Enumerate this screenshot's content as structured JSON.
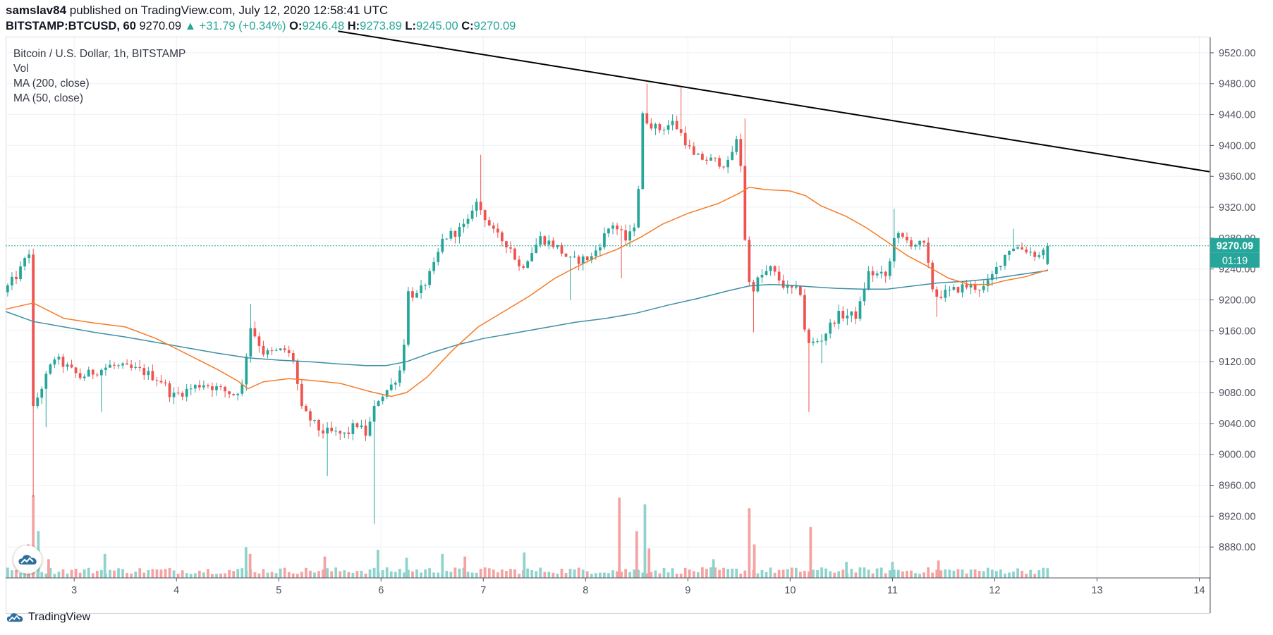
{
  "header": {
    "user": "samslav84",
    "published_text": "published on TradingView.com, July 12, 2020 12:58:41 UTC",
    "symbol": "BITSTAMP:BTCUSD, 60",
    "last": "9270.09",
    "change": "▲ +31.79 (+0.34%)",
    "o_label": "O:",
    "o_value": "9246.48",
    "h_label": "H:",
    "h_value": "9273.89",
    "l_label": "L:",
    "l_value": "9245.00",
    "c_label": "C:",
    "c_value": "9270.09"
  },
  "legend": {
    "title": "Bitcoin / U.S. Dollar, 1h, BITSTAMP",
    "vol": "Vol",
    "ma200": "MA (200, close)",
    "ma50": "MA (50, close)"
  },
  "footer": {
    "brand": "TradingView"
  },
  "colors": {
    "up": "#26a69a",
    "down": "#ef5350",
    "vol_up": "#8fd3cc",
    "vol_down": "#f4a3a2",
    "ma50": "#f57c28",
    "ma200": "#3d8fa6",
    "trendline": "#000000",
    "grid": "#eef0f4"
  },
  "icons": {
    "tradingview_logo": "tradingview-cloud-icon"
  },
  "chart_data": {
    "type": "candlestick",
    "title": "Bitcoin / U.S. Dollar, 1h, BITSTAMP",
    "y_axis": {
      "ylim": [
        8840,
        9540
      ],
      "tick_labels": [
        "9520.00",
        "9480.00",
        "9440.00",
        "9400.00",
        "9360.00",
        "9320.00",
        "9280.00",
        "9240.00",
        "9200.00",
        "9160.00",
        "9120.00",
        "9080.00",
        "9040.00",
        "9000.00",
        "8960.00",
        "8920.00",
        "8880.00"
      ]
    },
    "x_axis": {
      "day_range": [
        2.33,
        14.1
      ],
      "tick_labels": [
        "3",
        "4",
        "5",
        "6",
        "7",
        "8",
        "9",
        "10",
        "11",
        "12",
        "13",
        "14"
      ]
    },
    "price_label": "9270.09",
    "countdown_label": "01:19",
    "grid": true,
    "ohlc_path": [
      [
        2.35,
        9210
      ],
      [
        2.5,
        9235
      ],
      [
        2.6,
        9262
      ],
      [
        2.62,
        9050
      ],
      [
        2.7,
        9080
      ],
      [
        2.85,
        9125
      ],
      [
        3.1,
        9100
      ],
      [
        3.4,
        9115
      ],
      [
        3.7,
        9108
      ],
      [
        3.9,
        9095
      ],
      [
        4.0,
        9075
      ],
      [
        4.3,
        9092
      ],
      [
        4.6,
        9078
      ],
      [
        4.7,
        9090
      ],
      [
        4.75,
        9170
      ],
      [
        4.9,
        9130
      ],
      [
        5.1,
        9135
      ],
      [
        5.2,
        9120
      ],
      [
        5.25,
        9060
      ],
      [
        5.45,
        9030
      ],
      [
        5.7,
        9025
      ],
      [
        5.8,
        9040
      ],
      [
        5.9,
        9025
      ],
      [
        6.0,
        9070
      ],
      [
        6.15,
        9090
      ],
      [
        6.25,
        9115
      ],
      [
        6.3,
        9210
      ],
      [
        6.4,
        9205
      ],
      [
        6.55,
        9240
      ],
      [
        6.65,
        9280
      ],
      [
        6.8,
        9290
      ],
      [
        6.9,
        9300
      ],
      [
        6.95,
        9330
      ],
      [
        7.05,
        9310
      ],
      [
        7.15,
        9285
      ],
      [
        7.3,
        9270
      ],
      [
        7.4,
        9240
      ],
      [
        7.6,
        9280
      ],
      [
        7.75,
        9270
      ],
      [
        7.9,
        9250
      ],
      [
        8.1,
        9255
      ],
      [
        8.3,
        9300
      ],
      [
        8.45,
        9275
      ],
      [
        8.55,
        9310
      ],
      [
        8.58,
        9440
      ],
      [
        8.75,
        9420
      ],
      [
        8.9,
        9430
      ],
      [
        9.0,
        9410
      ],
      [
        9.1,
        9385
      ],
      [
        9.3,
        9380
      ],
      [
        9.45,
        9375
      ],
      [
        9.5,
        9410
      ],
      [
        9.55,
        9395
      ],
      [
        9.6,
        9280
      ],
      [
        9.65,
        9210
      ],
      [
        9.75,
        9230
      ],
      [
        9.85,
        9240
      ],
      [
        10.0,
        9215
      ],
      [
        10.15,
        9210
      ],
      [
        10.2,
        9140
      ],
      [
        10.35,
        9150
      ],
      [
        10.5,
        9180
      ],
      [
        10.7,
        9180
      ],
      [
        10.8,
        9235
      ],
      [
        11.0,
        9230
      ],
      [
        11.05,
        9285
      ],
      [
        11.2,
        9275
      ],
      [
        11.35,
        9270
      ],
      [
        11.45,
        9205
      ],
      [
        11.6,
        9210
      ],
      [
        11.75,
        9218
      ],
      [
        11.95,
        9215
      ],
      [
        12.1,
        9250
      ],
      [
        12.2,
        9270
      ],
      [
        12.35,
        9265
      ],
      [
        12.5,
        9255
      ],
      [
        12.52,
        9270
      ]
    ],
    "wick_extremes": [
      [
        2.55,
        9265
      ],
      [
        2.62,
        8945
      ],
      [
        2.72,
        9035
      ],
      [
        3.25,
        9055
      ],
      [
        4.72,
        9195
      ],
      [
        5.47,
        8972
      ],
      [
        5.95,
        8910
      ],
      [
        6.98,
        9388
      ],
      [
        7.85,
        9200
      ],
      [
        8.35,
        9228
      ],
      [
        8.6,
        9480
      ],
      [
        8.92,
        9475
      ],
      [
        9.55,
        9435
      ],
      [
        9.63,
        9158
      ],
      [
        10.18,
        9055
      ],
      [
        10.3,
        9118
      ],
      [
        11.02,
        9318
      ],
      [
        11.42,
        9178
      ],
      [
        12.2,
        9292
      ]
    ],
    "ma50": [
      [
        2.33,
        9188
      ],
      [
        2.6,
        9196
      ],
      [
        2.9,
        9176
      ],
      [
        3.2,
        9170
      ],
      [
        3.5,
        9165
      ],
      [
        3.8,
        9150
      ],
      [
        4.1,
        9130
      ],
      [
        4.4,
        9110
      ],
      [
        4.6,
        9095
      ],
      [
        4.7,
        9085
      ],
      [
        4.85,
        9094
      ],
      [
        5.1,
        9098
      ],
      [
        5.3,
        9096
      ],
      [
        5.6,
        9092
      ],
      [
        5.9,
        9081
      ],
      [
        6.1,
        9075
      ],
      [
        6.25,
        9080
      ],
      [
        6.45,
        9100
      ],
      [
        6.7,
        9135
      ],
      [
        6.95,
        9165
      ],
      [
        7.2,
        9185
      ],
      [
        7.45,
        9205
      ],
      [
        7.7,
        9228
      ],
      [
        7.9,
        9242
      ],
      [
        8.1,
        9255
      ],
      [
        8.3,
        9265
      ],
      [
        8.55,
        9282
      ],
      [
        8.75,
        9298
      ],
      [
        9.0,
        9312
      ],
      [
        9.3,
        9325
      ],
      [
        9.5,
        9338
      ],
      [
        9.6,
        9346
      ],
      [
        9.75,
        9343
      ],
      [
        10.0,
        9341
      ],
      [
        10.15,
        9335
      ],
      [
        10.3,
        9322
      ],
      [
        10.55,
        9308
      ],
      [
        10.75,
        9293
      ],
      [
        10.95,
        9275
      ],
      [
        11.15,
        9257
      ],
      [
        11.35,
        9243
      ],
      [
        11.55,
        9228
      ],
      [
        11.75,
        9220
      ],
      [
        11.95,
        9220
      ],
      [
        12.1,
        9225
      ],
      [
        12.3,
        9230
      ],
      [
        12.52,
        9239
      ]
    ],
    "ma200": [
      [
        2.33,
        9185
      ],
      [
        2.6,
        9172
      ],
      [
        2.9,
        9165
      ],
      [
        3.2,
        9158
      ],
      [
        3.5,
        9152
      ],
      [
        3.8,
        9145
      ],
      [
        4.1,
        9138
      ],
      [
        4.4,
        9131
      ],
      [
        4.7,
        9125
      ],
      [
        5.0,
        9122
      ],
      [
        5.3,
        9120
      ],
      [
        5.6,
        9117
      ],
      [
        5.85,
        9115
      ],
      [
        6.05,
        9115
      ],
      [
        6.25,
        9120
      ],
      [
        6.5,
        9132
      ],
      [
        6.75,
        9142
      ],
      [
        7.0,
        9150
      ],
      [
        7.3,
        9157
      ],
      [
        7.6,
        9164
      ],
      [
        7.9,
        9171
      ],
      [
        8.2,
        9176
      ],
      [
        8.5,
        9183
      ],
      [
        8.8,
        9193
      ],
      [
        9.1,
        9202
      ],
      [
        9.4,
        9212
      ],
      [
        9.6,
        9218
      ],
      [
        9.8,
        9220
      ],
      [
        10.0,
        9219
      ],
      [
        10.2,
        9217
      ],
      [
        10.45,
        9215
      ],
      [
        10.7,
        9214
      ],
      [
        10.95,
        9214
      ],
      [
        11.2,
        9218
      ],
      [
        11.45,
        9222
      ],
      [
        11.7,
        9224
      ],
      [
        11.95,
        9227
      ],
      [
        12.2,
        9232
      ],
      [
        12.52,
        9238
      ]
    ],
    "trendline": [
      [
        5.58,
        9548
      ],
      [
        14.1,
        9366
      ]
    ],
    "volume_spikes": [
      [
        2.55,
        0.25,
        "down"
      ],
      [
        2.6,
        0.62,
        "down"
      ],
      [
        2.65,
        0.35,
        "up"
      ],
      [
        2.75,
        0.14,
        "down"
      ],
      [
        3.3,
        0.18,
        "up"
      ],
      [
        4.68,
        0.23,
        "up"
      ],
      [
        4.72,
        0.18,
        "down"
      ],
      [
        5.45,
        0.16,
        "down"
      ],
      [
        5.97,
        0.21,
        "up"
      ],
      [
        6.25,
        0.15,
        "up"
      ],
      [
        6.6,
        0.18,
        "up"
      ],
      [
        6.82,
        0.16,
        "down"
      ],
      [
        7.4,
        0.19,
        "up"
      ],
      [
        8.33,
        0.6,
        "down"
      ],
      [
        8.5,
        0.35,
        "down"
      ],
      [
        8.58,
        0.55,
        "up"
      ],
      [
        8.62,
        0.22,
        "down"
      ],
      [
        9.25,
        0.14,
        "up"
      ],
      [
        9.6,
        0.52,
        "down"
      ],
      [
        9.65,
        0.25,
        "down"
      ],
      [
        10.2,
        0.38,
        "down"
      ],
      [
        10.55,
        0.12,
        "up"
      ],
      [
        11.0,
        0.12,
        "up"
      ],
      [
        11.45,
        0.13,
        "down"
      ]
    ]
  }
}
